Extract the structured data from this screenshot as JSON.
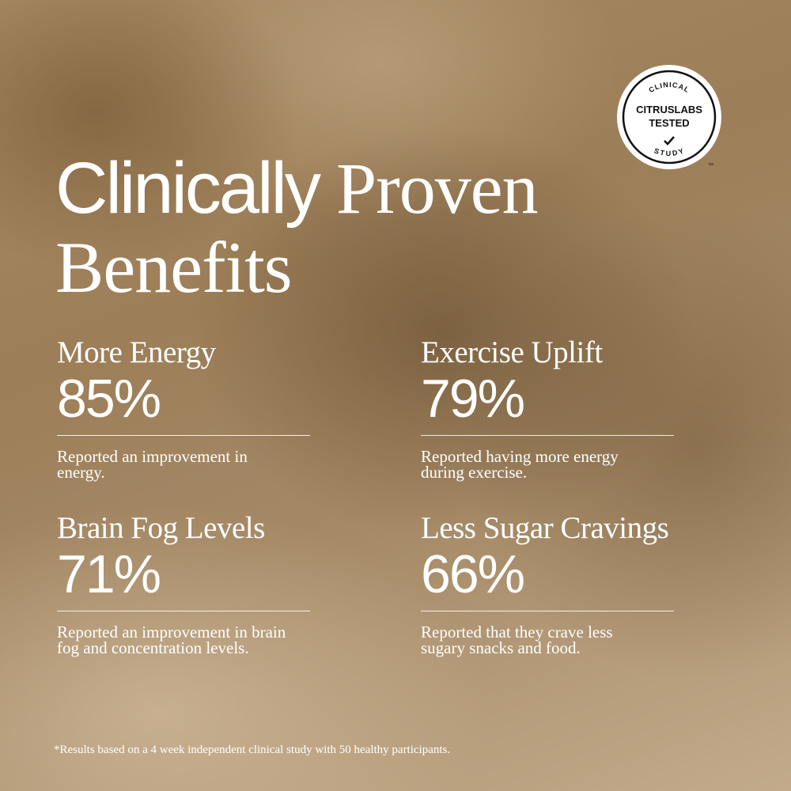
{
  "badge": {
    "top": "CLINICAL",
    "line1": "CITRUSLABS",
    "line2": "TESTED",
    "bottom": "STUDY",
    "trademark": "™"
  },
  "title": {
    "sans": "Clinically",
    "serif_1": "Proven",
    "serif_2": "Benefits"
  },
  "stats": [
    {
      "label": "More Energy",
      "value": "85%",
      "description": "Reported an improvement in energy."
    },
    {
      "label": "Exercise Uplift",
      "value": "79%",
      "description": "Reported having more energy during exercise."
    },
    {
      "label": "Brain Fog Levels",
      "value": "71%",
      "description": "Reported an improvement in brain fog and concentration levels."
    },
    {
      "label": "Less Sugar Cravings",
      "value": "66%",
      "description": "Reported that they crave less sugary snacks and food."
    }
  ],
  "footnote": "*Results based on a 4 week independent clinical study with 50 healthy participants."
}
